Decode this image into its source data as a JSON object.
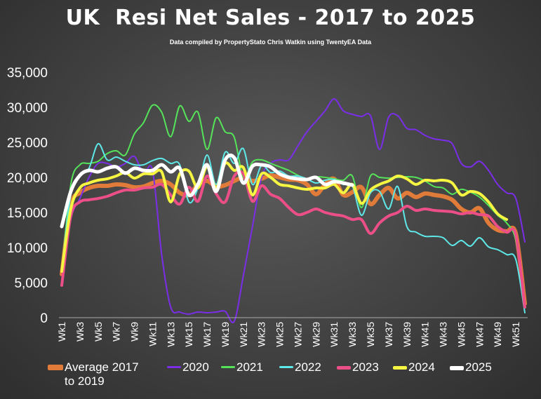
{
  "chart_data": {
    "type": "line",
    "title": "UK  Resi Net Sales - 2017 to 2025",
    "subtitle": "Data compiled by PropertyStato Chris Watkin using TwentyEA Data",
    "xlabel": "",
    "ylabel": "",
    "ylim": [
      0,
      35000
    ],
    "yticks": [
      "0",
      "5,000",
      "10,000",
      "15,000",
      "20,000",
      "25,000",
      "30,000",
      "35,000"
    ],
    "ytick_values": [
      0,
      5000,
      10000,
      15000,
      20000,
      25000,
      30000,
      35000
    ],
    "xticks": [
      "Wk1",
      "Wk3",
      "Wk5",
      "Wk7",
      "Wk9",
      "Wk11",
      "Wk13",
      "Wk15",
      "Wk17",
      "Wk19",
      "Wk21",
      "Wk23",
      "Wk25",
      "Wk27",
      "Wk29",
      "Wk31",
      "Wk33",
      "Wk35",
      "Wk37",
      "Wk39",
      "Wk41",
      "Wk43",
      "Wk45",
      "Wk47",
      "Wk49",
      "Wk51"
    ],
    "xtick_weeks": [
      1,
      3,
      5,
      7,
      9,
      11,
      13,
      15,
      17,
      19,
      21,
      23,
      25,
      27,
      29,
      31,
      33,
      35,
      37,
      39,
      41,
      43,
      45,
      47,
      49,
      51
    ],
    "xlim": [
      1,
      52
    ],
    "grid": false,
    "legend_position": "bottom",
    "series": [
      {
        "name": "Average 2017 to 2019",
        "legend_lines": [
          "Average 2017",
          "to 2019"
        ],
        "color": "#e07b39",
        "width": 6,
        "x": [
          1,
          2,
          3,
          4,
          5,
          6,
          7,
          8,
          9,
          10,
          11,
          12,
          13,
          14,
          15,
          16,
          17,
          18,
          19,
          20,
          21,
          22,
          23,
          24,
          25,
          26,
          27,
          28,
          29,
          30,
          31,
          32,
          33,
          34,
          35,
          36,
          37,
          38,
          39,
          40,
          41,
          42,
          43,
          44,
          45,
          46,
          47,
          48,
          49,
          50,
          51,
          52
        ],
        "values": [
          6200,
          16000,
          17800,
          18500,
          18800,
          18800,
          19000,
          18900,
          18600,
          18700,
          19200,
          19500,
          19000,
          17800,
          17500,
          19000,
          19500,
          18700,
          18900,
          19500,
          20000,
          19500,
          19800,
          20300,
          20000,
          19700,
          19600,
          19000,
          17600,
          19000,
          19800,
          17500,
          17900,
          18600,
          16200,
          17500,
          18500,
          17000,
          17800,
          17200,
          17700,
          17500,
          17300,
          16800,
          15500,
          15000,
          15600,
          13500,
          12500,
          12300,
          12000,
          2000
        ]
      },
      {
        "name": "2020",
        "color": "#7a2ee8",
        "width": 2,
        "x": [
          1,
          2,
          3,
          4,
          5,
          6,
          7,
          8,
          9,
          10,
          11,
          12,
          13,
          14,
          15,
          16,
          17,
          18,
          19,
          20,
          21,
          22,
          23,
          24,
          25,
          26,
          27,
          28,
          29,
          30,
          31,
          32,
          33,
          34,
          35,
          36,
          37,
          38,
          39,
          40,
          41,
          42,
          43,
          44,
          45,
          46,
          47,
          48,
          49,
          50,
          51,
          52
        ],
        "values": [
          4800,
          14000,
          17000,
          20000,
          22000,
          22000,
          21500,
          22000,
          23000,
          20500,
          21000,
          9000,
          1500,
          800,
          500,
          800,
          700,
          800,
          900,
          -500,
          6000,
          13000,
          20000,
          22000,
          22500,
          22500,
          24500,
          26500,
          28000,
          29500,
          31200,
          29500,
          29000,
          28700,
          28800,
          24000,
          28600,
          28800,
          27000,
          26800,
          26000,
          25500,
          25300,
          24800,
          22000,
          21500,
          22300,
          21000,
          19000,
          17800,
          17000,
          10800
        ]
      },
      {
        "name": "2021",
        "color": "#55e35a",
        "width": 2,
        "x": [
          1,
          2,
          3,
          4,
          5,
          6,
          7,
          8,
          9,
          10,
          11,
          12,
          13,
          14,
          15,
          16,
          17,
          18,
          19,
          20,
          21,
          22,
          23,
          24,
          25,
          26,
          27,
          28,
          29,
          30,
          31,
          32,
          33,
          34,
          35,
          36,
          37,
          38,
          39,
          40,
          41,
          42,
          43,
          44,
          45,
          46,
          47,
          48,
          49,
          50,
          51,
          52
        ],
        "values": [
          6500,
          19000,
          21800,
          22000,
          22300,
          23400,
          23800,
          23200,
          26200,
          27800,
          30300,
          29300,
          25800,
          30200,
          28000,
          29300,
          24000,
          28500,
          26500,
          25700,
          20000,
          22200,
          22500,
          22000,
          21500,
          21000,
          20300,
          19800,
          20100,
          20000,
          19800,
          19600,
          20200,
          15700,
          20200,
          20000,
          19900,
          20000,
          20100,
          20000,
          19500,
          18700,
          18500,
          17600,
          18300,
          17900,
          17200,
          16000,
          14600,
          13500,
          11000,
          1800
        ]
      },
      {
        "name": "2022",
        "color": "#5ee8e8",
        "width": 2,
        "x": [
          1,
          2,
          3,
          4,
          5,
          6,
          7,
          8,
          9,
          10,
          11,
          12,
          13,
          14,
          15,
          16,
          17,
          18,
          19,
          20,
          21,
          22,
          23,
          24,
          25,
          26,
          27,
          28,
          29,
          30,
          31,
          32,
          33,
          34,
          35,
          36,
          37,
          38,
          39,
          40,
          41,
          42,
          43,
          44,
          45,
          46,
          47,
          48,
          49,
          50,
          51,
          52
        ],
        "values": [
          7000,
          17500,
          20300,
          21300,
          24800,
          22500,
          22900,
          22300,
          21800,
          21800,
          22400,
          22700,
          22000,
          21800,
          16500,
          18500,
          23200,
          19000,
          23600,
          22000,
          24100,
          19000,
          21700,
          20700,
          20900,
          20200,
          20200,
          19800,
          19200,
          19600,
          19700,
          19000,
          18800,
          14600,
          17800,
          18000,
          15500,
          18700,
          13000,
          12200,
          11600,
          11600,
          11400,
          10300,
          11000,
          10200,
          11400,
          10100,
          9700,
          9000,
          8300,
          700
        ]
      },
      {
        "name": "2023",
        "color": "#ec4f87",
        "width": 4,
        "x": [
          1,
          2,
          3,
          4,
          5,
          6,
          7,
          8,
          9,
          10,
          11,
          12,
          13,
          14,
          15,
          16,
          17,
          18,
          19,
          20,
          21,
          22,
          23,
          24,
          25,
          26,
          27,
          28,
          29,
          30,
          31,
          32,
          33,
          34,
          35,
          36,
          37,
          38,
          39,
          40,
          41,
          42,
          43,
          44,
          45,
          46,
          47,
          48,
          49,
          50,
          51,
          52
        ],
        "values": [
          4600,
          14500,
          16500,
          16800,
          17000,
          17300,
          17800,
          18200,
          18200,
          18500,
          18600,
          19000,
          17500,
          16200,
          18600,
          16600,
          20200,
          17700,
          16500,
          20200,
          20500,
          16600,
          18800,
          17600,
          17000,
          15700,
          14700,
          15000,
          15500,
          15000,
          14700,
          14500,
          14000,
          14000,
          12000,
          13500,
          14500,
          15000,
          15900,
          15300,
          15500,
          15300,
          15200,
          15100,
          14800,
          15000,
          14700,
          14500,
          13000,
          12200,
          11800,
          1500
        ]
      },
      {
        "name": "2024",
        "color": "#f5f542",
        "width": 4,
        "x": [
          1,
          2,
          3,
          4,
          5,
          6,
          7,
          8,
          9,
          10,
          11,
          12,
          13,
          14,
          15,
          16,
          17,
          18,
          19,
          20,
          21,
          22,
          23,
          24,
          25,
          26,
          27,
          28,
          29,
          30,
          31,
          32,
          33,
          34,
          35,
          36,
          37,
          38,
          39,
          40,
          41,
          42,
          43,
          44,
          45,
          46,
          47,
          48,
          49,
          50
        ],
        "values": [
          6600,
          15500,
          18500,
          19200,
          19600,
          19800,
          20200,
          20700,
          19900,
          20500,
          20500,
          20800,
          16500,
          20500,
          20900,
          18500,
          21500,
          18500,
          22000,
          21000,
          21400,
          17500,
          20500,
          20000,
          19000,
          18800,
          18500,
          18300,
          18500,
          18500,
          19000,
          17800,
          19000,
          16300,
          18200,
          19000,
          19500,
          20200,
          19800,
          19000,
          19600,
          19500,
          19600,
          19200,
          17500,
          18000,
          17700,
          16500,
          14800,
          14000
        ]
      },
      {
        "name": "2025",
        "color": "#ffffff",
        "width": 5,
        "x": [
          1,
          2,
          3,
          4,
          5,
          6,
          7,
          8,
          9,
          10,
          11,
          12,
          13,
          14,
          15,
          16,
          17,
          18,
          19,
          20,
          21,
          22,
          23,
          24,
          25,
          26,
          27,
          28,
          29,
          30,
          31,
          32,
          33
        ],
        "values": [
          13000,
          18000,
          20300,
          21000,
          20800,
          21300,
          21500,
          20600,
          21300,
          21000,
          21000,
          21800,
          20800,
          21300,
          17500,
          19000,
          21800,
          18000,
          22500,
          22800,
          19200,
          21600,
          21800,
          21500,
          20500,
          20000,
          19800,
          19700,
          20000,
          19000,
          19400,
          19200,
          18900
        ]
      }
    ]
  }
}
